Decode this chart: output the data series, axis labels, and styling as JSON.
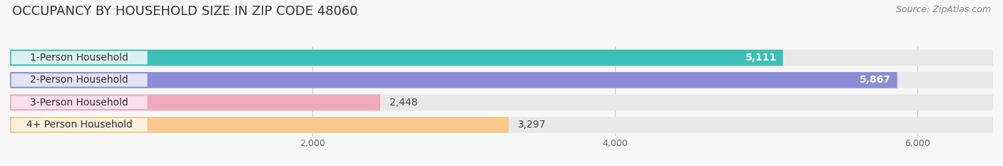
{
  "title": "OCCUPANCY BY HOUSEHOLD SIZE IN ZIP CODE 48060",
  "source": "Source: ZipAtlas.com",
  "categories": [
    "1-Person Household",
    "2-Person Household",
    "3-Person Household",
    "4+ Person Household"
  ],
  "values": [
    5111,
    5867,
    2448,
    3297
  ],
  "bar_colors": [
    "#3dbfb8",
    "#8b8dd6",
    "#f0a8bc",
    "#f7c98a"
  ],
  "label_bg_colors": [
    "#e4f6f5",
    "#e8e8f5",
    "#fce4ee",
    "#fef3e2"
  ],
  "value_inside": [
    true,
    true,
    false,
    false
  ],
  "xlim": [
    0,
    6500
  ],
  "xticks": [
    2000,
    4000,
    6000
  ],
  "xtick_labels": [
    "2,000",
    "4,000",
    "6,000"
  ],
  "background_color": "#f7f7f7",
  "bar_background_color": "#e8e8e8",
  "title_fontsize": 13,
  "source_fontsize": 9,
  "bar_label_fontsize": 10,
  "tick_fontsize": 9,
  "category_fontsize": 10
}
